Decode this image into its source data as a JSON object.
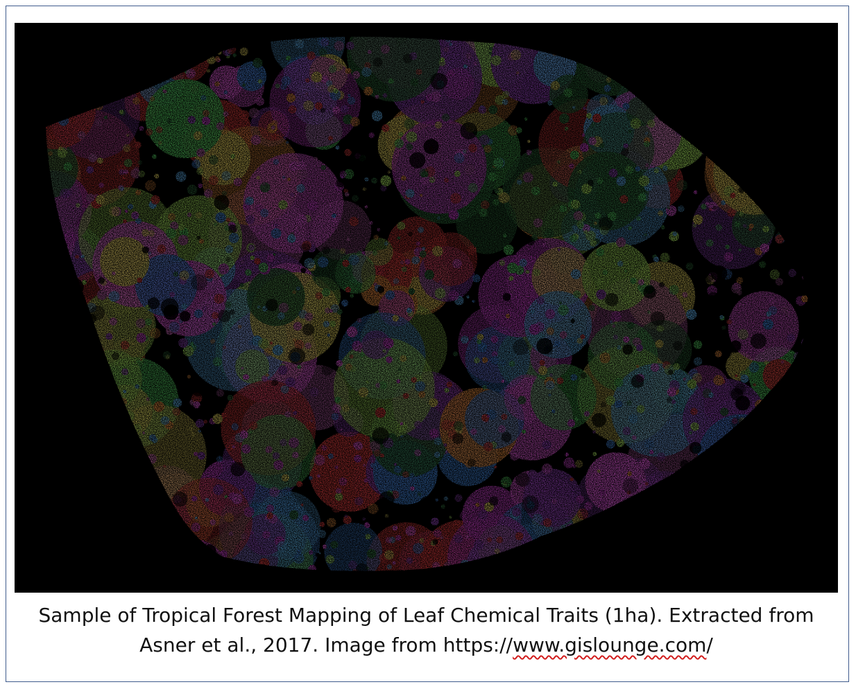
{
  "figure": {
    "image_description_icon": "forest-canopy-image",
    "colors": {
      "background": "#000000",
      "frame_border": "#3f5b8c",
      "caption_text": "#111111",
      "spellcheck_underline": "#d21f1f",
      "palette": [
        "#c23fc4",
        "#e05ad8",
        "#8a3fb0",
        "#3f7fd0",
        "#5aa7e0",
        "#4fbf5a",
        "#9fd85a",
        "#d8c85a",
        "#e08a3f",
        "#d23a3a",
        "#b05aa0",
        "#2e6b3a"
      ]
    },
    "caption": {
      "line1": "Sample of Tropical Forest Mapping of Leaf Chemical Traits (1ha). Extracted from",
      "line2_prefix": "Asner et al., 2017. Image from https://",
      "line2_url_marked": "www.gislounge.com",
      "line2_suffix": "/"
    }
  }
}
